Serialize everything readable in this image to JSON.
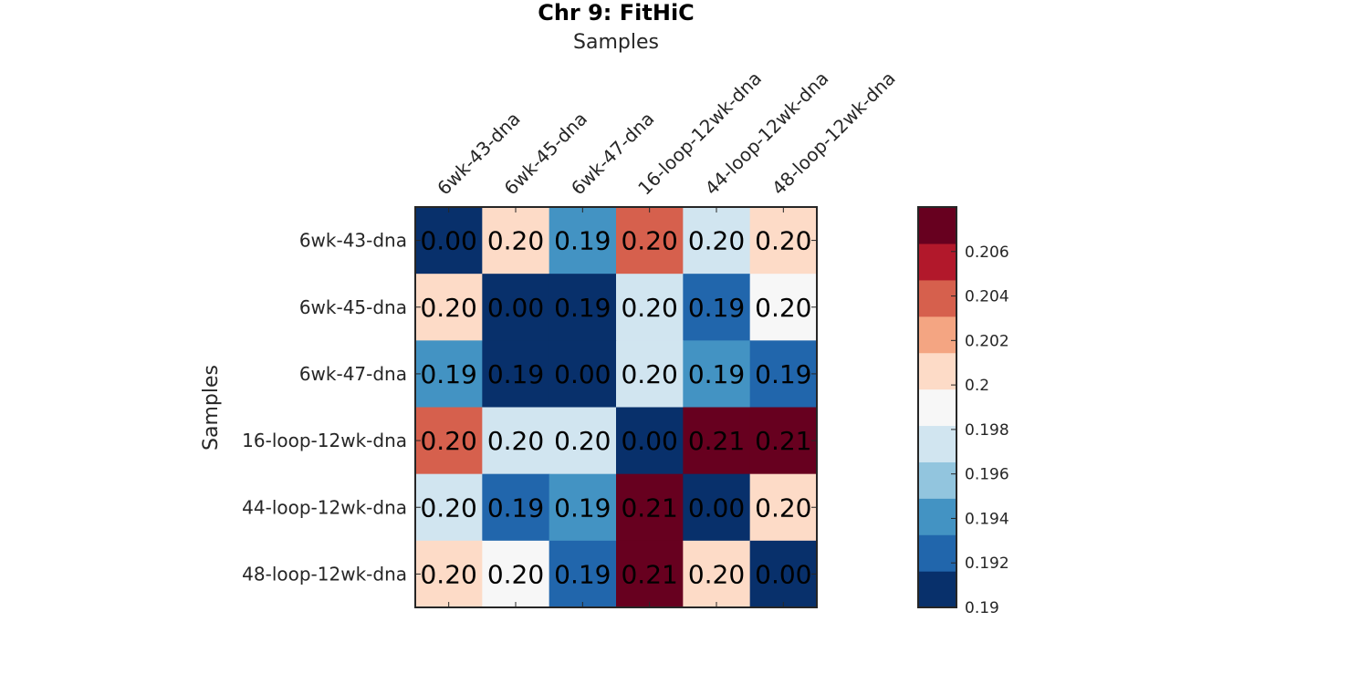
{
  "chart_data": {
    "type": "heatmap",
    "title": "Chr 9: FitHiC",
    "xlabel": "Samples",
    "ylabel": "Samples",
    "xlabel_position": "top",
    "categories": [
      "6wk-43-dna",
      "6wk-45-dna",
      "6wk-47-dna",
      "16-loop-12wk-dna",
      "44-loop-12wk-dna",
      "48-loop-12wk-dna"
    ],
    "values": [
      [
        0.0,
        0.2005,
        0.1945,
        0.2045,
        0.1975,
        0.2005
      ],
      [
        0.2005,
        0.0,
        0.1905,
        0.1975,
        0.1925,
        0.1985
      ],
      [
        0.1945,
        0.1905,
        0.0,
        0.1975,
        0.1945,
        0.1925
      ],
      [
        0.2045,
        0.1975,
        0.1975,
        0.0,
        0.2075,
        0.2065
      ],
      [
        0.1975,
        0.1925,
        0.1945,
        0.2075,
        0.0,
        0.2005
      ],
      [
        0.2005,
        0.1985,
        0.1925,
        0.2065,
        0.2005,
        0.0
      ]
    ],
    "labels": [
      [
        "0.00",
        "0.20",
        "0.19",
        "0.20",
        "0.20",
        "0.20"
      ],
      [
        "0.20",
        "0.00",
        "0.19",
        "0.20",
        "0.19",
        "0.20"
      ],
      [
        "0.19",
        "0.19",
        "0.00",
        "0.20",
        "0.19",
        "0.19"
      ],
      [
        "0.20",
        "0.20",
        "0.20",
        "0.00",
        "0.21",
        "0.21"
      ],
      [
        "0.20",
        "0.19",
        "0.19",
        "0.21",
        "0.00",
        "0.20"
      ],
      [
        "0.20",
        "0.20",
        "0.19",
        "0.21",
        "0.20",
        "0.00"
      ]
    ],
    "colorbar": {
      "range": [
        0.19,
        0.208
      ],
      "ticks": [
        0.19,
        0.192,
        0.194,
        0.196,
        0.198,
        0.2,
        0.202,
        0.204,
        0.206
      ],
      "tick_labels": [
        "0.19",
        "0.192",
        "0.194",
        "0.196",
        "0.198",
        "0.2",
        "0.202",
        "0.204",
        "0.206"
      ],
      "colors": [
        "#08306b",
        "#2166ac",
        "#4393c3",
        "#92c5de",
        "#d1e5f0",
        "#f7f7f7",
        "#fddbc7",
        "#f4a582",
        "#d6604d",
        "#b2182b",
        "#67001f"
      ]
    },
    "grid": false,
    "legend_position": "right"
  }
}
